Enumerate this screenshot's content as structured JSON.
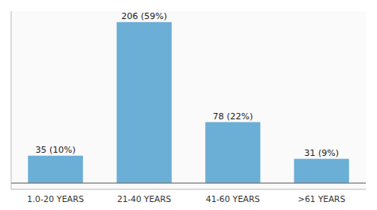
{
  "chart_data": {
    "type": "bar",
    "categories": [
      "1.0-20 YEARS",
      "21-40 YEARS",
      "41-60 YEARS",
      ">61 YEARS"
    ],
    "values": [
      35,
      206,
      78,
      31
    ],
    "value_labels": [
      "35 (10%)",
      "206 (59%)",
      "78 (22%)",
      "31 (9%)"
    ],
    "data_labels": true,
    "color": "#6BAED6",
    "ylim": [
      -8,
      220
    ],
    "tick_labels": "x",
    "grid": false
  }
}
